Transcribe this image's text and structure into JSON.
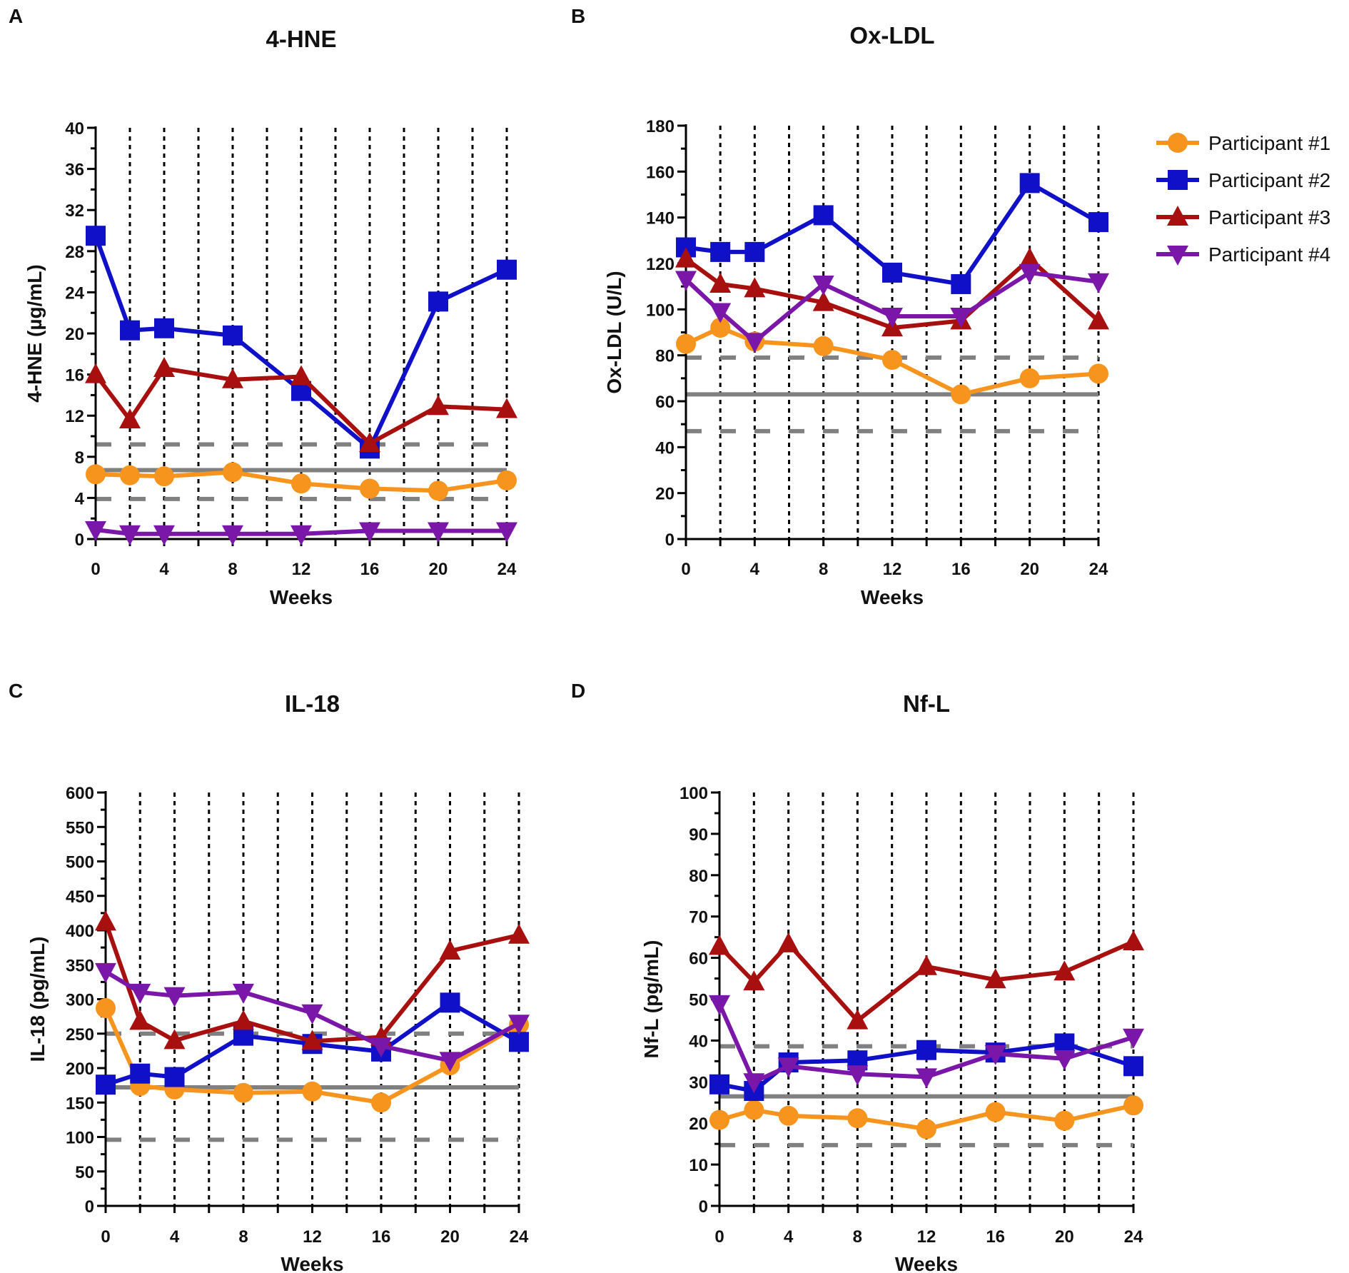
{
  "legend": {
    "entries": [
      {
        "label": "Participant #1",
        "color": "#f7941d",
        "marker": "circle"
      },
      {
        "label": "Participant #2",
        "color": "#1010c8",
        "marker": "square"
      },
      {
        "label": "Participant #3",
        "color": "#a80f0f",
        "marker": "triangle-up"
      },
      {
        "label": "Participant #4",
        "color": "#7a16a8",
        "marker": "triangle-down"
      }
    ]
  },
  "reference_line_color": "#808080",
  "chart_data": [
    {
      "panel": "A",
      "type": "line",
      "title": "4-HNE",
      "xlabel": "Weeks",
      "ylabel": "4-HNE (µg/mL)",
      "xlim": [
        0,
        24
      ],
      "xticks": [
        0,
        4,
        8,
        12,
        16,
        20,
        24
      ],
      "ylim": [
        0,
        40
      ],
      "yticks": [
        0,
        4,
        8,
        12,
        16,
        20,
        24,
        28,
        32,
        36,
        40
      ],
      "vertical_dotted_at": [
        2,
        4,
        6,
        8,
        10,
        12,
        14,
        16,
        18,
        20,
        22,
        24
      ],
      "reference_mean": 6.7,
      "reference_band": [
        3.9,
        9.2
      ],
      "series": [
        {
          "name": "Participant #1",
          "x": [
            0,
            2,
            4,
            8,
            12,
            16,
            20,
            24
          ],
          "y": [
            6.3,
            6.2,
            6.1,
            6.5,
            5.4,
            4.9,
            4.7,
            5.7
          ]
        },
        {
          "name": "Participant #2",
          "x": [
            0,
            2,
            4,
            8,
            12,
            16,
            20,
            24
          ],
          "y": [
            29.5,
            20.3,
            20.5,
            19.8,
            14.4,
            8.8,
            23.1,
            26.2
          ]
        },
        {
          "name": "Participant #3",
          "x": [
            0,
            2,
            4,
            8,
            12,
            16,
            20,
            24
          ],
          "y": [
            16.0,
            11.6,
            16.6,
            15.5,
            15.8,
            9.3,
            12.9,
            12.6
          ]
        },
        {
          "name": "Participant #4",
          "x": [
            0,
            2,
            4,
            8,
            12,
            16,
            20,
            24
          ],
          "y": [
            0.9,
            0.5,
            0.5,
            0.5,
            0.5,
            0.8,
            0.8,
            0.8
          ]
        }
      ]
    },
    {
      "panel": "B",
      "type": "line",
      "title": "Ox-LDL",
      "xlabel": "Weeks",
      "ylabel": "Ox-LDL (U/L)",
      "xlim": [
        0,
        24
      ],
      "xticks": [
        0,
        4,
        8,
        12,
        16,
        20,
        24
      ],
      "ylim": [
        0,
        180
      ],
      "yticks": [
        0,
        20,
        40,
        60,
        80,
        100,
        120,
        140,
        160,
        180
      ],
      "vertical_dotted_at": [
        2,
        4,
        6,
        8,
        10,
        12,
        14,
        16,
        18,
        20,
        22,
        24
      ],
      "reference_mean": 63,
      "reference_band": [
        47,
        79
      ],
      "series": [
        {
          "name": "Participant #1",
          "x": [
            0,
            2,
            4,
            8,
            12,
            16,
            20,
            24
          ],
          "y": [
            85,
            92,
            86,
            84,
            78,
            63,
            70,
            72
          ]
        },
        {
          "name": "Participant #2",
          "x": [
            0,
            2,
            4,
            8,
            12,
            16,
            20,
            24
          ],
          "y": [
            127,
            125,
            125,
            141,
            116,
            111,
            155,
            138
          ]
        },
        {
          "name": "Participant #3",
          "x": [
            0,
            2,
            4,
            8,
            12,
            16,
            20,
            24
          ],
          "y": [
            122,
            111,
            109,
            103,
            92,
            95,
            122,
            95
          ]
        },
        {
          "name": "Participant #4",
          "x": [
            0,
            2,
            4,
            8,
            12,
            16,
            20,
            24
          ],
          "y": [
            113,
            99,
            86,
            111,
            97,
            97,
            116,
            112
          ]
        }
      ]
    },
    {
      "panel": "C",
      "type": "line",
      "title": "IL-18",
      "xlabel": "Weeks",
      "ylabel": "IL-18 (pg/mL)",
      "xlim": [
        0,
        24
      ],
      "xticks": [
        0,
        4,
        8,
        12,
        16,
        20,
        24
      ],
      "ylim": [
        0,
        600
      ],
      "yticks": [
        0,
        50,
        100,
        150,
        200,
        250,
        300,
        350,
        400,
        450,
        500,
        550,
        600
      ],
      "vertical_dotted_at": [
        2,
        4,
        6,
        8,
        10,
        12,
        14,
        16,
        18,
        20,
        22,
        24
      ],
      "reference_mean": 172,
      "reference_band": [
        96,
        250
      ],
      "series": [
        {
          "name": "Participant #1",
          "x": [
            0,
            2,
            4,
            8,
            12,
            16,
            20,
            24
          ],
          "y": [
            287,
            174,
            169,
            164,
            166,
            150,
            204,
            263
          ]
        },
        {
          "name": "Participant #2",
          "x": [
            0,
            2,
            4,
            8,
            12,
            16,
            20,
            24
          ],
          "y": [
            176,
            192,
            187,
            247,
            235,
            224,
            295,
            238
          ]
        },
        {
          "name": "Participant #3",
          "x": [
            0,
            2,
            4,
            8,
            12,
            16,
            20,
            24
          ],
          "y": [
            412,
            268,
            240,
            268,
            239,
            245,
            370,
            393
          ]
        },
        {
          "name": "Participant #4",
          "x": [
            0,
            2,
            4,
            8,
            12,
            16,
            20,
            24
          ],
          "y": [
            340,
            310,
            305,
            310,
            280,
            232,
            211,
            265
          ]
        }
      ]
    },
    {
      "panel": "D",
      "type": "line",
      "title": "Nf-L",
      "xlabel": "Weeks",
      "ylabel": "Nf-L (pg/mL)",
      "xlim": [
        0,
        24
      ],
      "xticks": [
        0,
        4,
        8,
        12,
        16,
        20,
        24
      ],
      "ylim": [
        0,
        100
      ],
      "yticks": [
        0,
        10,
        20,
        30,
        40,
        50,
        60,
        70,
        80,
        90,
        100
      ],
      "vertical_dotted_at": [
        2,
        4,
        6,
        8,
        10,
        12,
        14,
        16,
        18,
        20,
        22,
        24
      ],
      "reference_mean": 26.5,
      "reference_band": [
        14.7,
        38.6
      ],
      "series": [
        {
          "name": "Participant #1",
          "x": [
            0,
            2,
            4,
            8,
            12,
            16,
            20,
            24
          ],
          "y": [
            20.8,
            23.2,
            21.8,
            21.2,
            18.6,
            22.7,
            20.6,
            24.3
          ]
        },
        {
          "name": "Participant #2",
          "x": [
            0,
            2,
            4,
            8,
            12,
            16,
            20,
            24
          ],
          "y": [
            29.4,
            27.8,
            34.7,
            35.2,
            37.7,
            37.1,
            39.3,
            33.8
          ]
        },
        {
          "name": "Participant #3",
          "x": [
            0,
            2,
            4,
            8,
            12,
            16,
            20,
            24
          ],
          "y": [
            62.8,
            54.2,
            63.4,
            44.8,
            57.9,
            54.7,
            56.6,
            63.9
          ]
        },
        {
          "name": "Participant #4",
          "x": [
            0,
            2,
            4,
            8,
            12,
            16,
            20,
            24
          ],
          "y": [
            48.9,
            30.0,
            33.8,
            31.9,
            31.2,
            36.8,
            35.6,
            40.8
          ]
        }
      ]
    }
  ]
}
